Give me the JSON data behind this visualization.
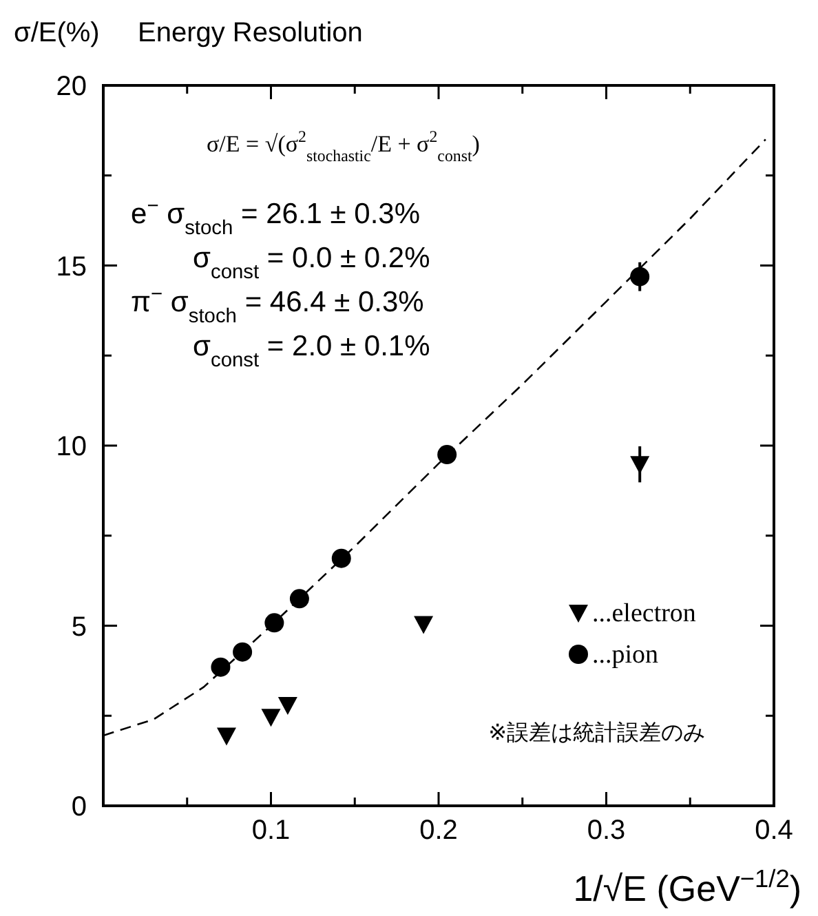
{
  "chart_data": {
    "type": "scatter",
    "title": "Energy Resolution",
    "ylabel": "σ/E(%)",
    "xlabel": "1/√E (GeV$^{−1/2}$)",
    "xlim": [
      0,
      0.4
    ],
    "ylim": [
      0,
      20
    ],
    "xticks": [
      {
        "value": 0,
        "label": null
      },
      {
        "value": 0.05,
        "label": null
      },
      0.1,
      {
        "value": 0.15,
        "label": null
      },
      0.2,
      {
        "value": 0.25,
        "label": null
      },
      0.3,
      {
        "value": 0.35,
        "label": null
      },
      0.4
    ],
    "yticks": [
      0,
      {
        "value": 2.5,
        "label": null
      },
      5,
      {
        "value": 7.5,
        "label": null
      },
      10,
      {
        "value": 12.5,
        "label": null
      },
      15,
      {
        "value": 17.5,
        "label": null
      },
      20
    ],
    "grid": false,
    "legend": "bottom right",
    "series": [
      {
        "name": "...electron",
        "marker": "triangle",
        "color": "#000000",
        "x": [
          0.0735,
          0.1,
          0.11,
          0.191,
          0.32
        ],
        "values": [
          1.94,
          2.46,
          2.79,
          5.04,
          9.48
        ],
        "errors": [
          null,
          null,
          null,
          null,
          0.5
        ]
      },
      {
        "name": "...pion",
        "marker": "circle",
        "color": "#000000",
        "x": [
          0.07,
          0.083,
          0.102,
          0.117,
          0.142,
          0.205,
          0.32
        ],
        "values": [
          3.85,
          4.27,
          5.08,
          5.75,
          6.87,
          9.75,
          14.69
        ],
        "errors": [
          null,
          null,
          null,
          null,
          null,
          null,
          0.4
        ]
      },
      {
        "type": "line",
        "line_style": "dashed",
        "color": "#000000",
        "x": [
          0,
          0.03,
          0.06,
          0.1,
          0.15,
          0.2,
          0.25,
          0.3,
          0.35,
          0.395
        ],
        "values": [
          1.95,
          2.4,
          3.3,
          5.0,
          7.2,
          9.5,
          11.7,
          14.0,
          16.3,
          18.5
        ]
      }
    ],
    "annotations": [
      "σ/E = √(σ$^{2}$$_{stochastic}$/E + σ$^{2}$$_{const}$)",
      "e$^{−}$  σ$_{stoch}$ = 26.1 ± 0.3%",
      "σ$_{const}$ =   0.0 ± 0.2%",
      "π$^{−}$  σ$_{stoch}$ = 46.4 ± 0.3%",
      "σ$_{const}$ =   2.0 ± 0.1%",
      "※誤差は統計誤差のみ"
    ]
  }
}
